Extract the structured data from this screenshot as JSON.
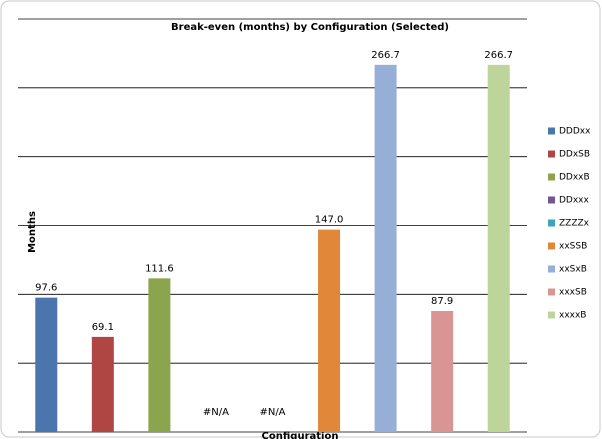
{
  "chart_data": {
    "type": "bar",
    "title": "Break-even (months) by Configuration (Selected)",
    "x_label": "Configuration",
    "y_label": "Months",
    "categories": [
      "DDDxx",
      "DDxSB",
      "DDxxB",
      "DDxxx",
      "ZZZZx",
      "xxSSB",
      "xxSxB",
      "xxxSB",
      "xxxxB"
    ],
    "values": [
      97.6,
      69.1,
      111.6,
      null,
      null,
      147.0,
      266.7,
      87.9,
      266.7
    ],
    "value_labels": [
      "97.6",
      "69.1",
      "111.6",
      "#N/A",
      "#N/A",
      "147.0",
      "266.7",
      "87.9",
      "266.7"
    ],
    "colors": [
      "#4a76ad",
      "#b04644",
      "#8aa54d",
      "#6f5694",
      "#3fa2be",
      "#e0873a",
      "#97aed6",
      "#d99594",
      "#bdd49a"
    ],
    "ylim": [
      0,
      300
    ],
    "yticks": [
      0,
      50,
      100,
      150,
      200,
      250,
      300
    ],
    "grid": true,
    "legend": "right"
  }
}
